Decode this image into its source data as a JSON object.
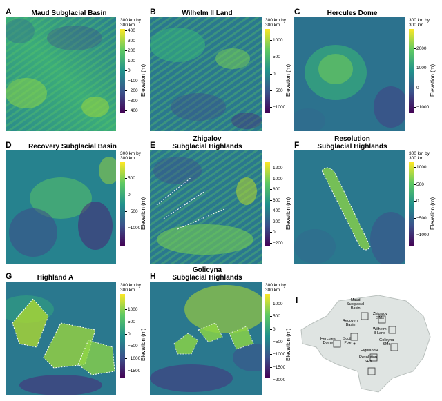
{
  "panels": [
    {
      "letter": "A",
      "title": "Maud Subglacial Basin",
      "scale_note": "300 km by\n300 km",
      "axis_label": "Elevation (m)",
      "ticks": [
        "400",
        "300",
        "200",
        "100",
        "0",
        "−100",
        "−200",
        "−300",
        "−400"
      ]
    },
    {
      "letter": "B",
      "title": "Wilhelm II Land",
      "scale_note": "300 km by\n300 km",
      "axis_label": "Elevation (m)",
      "ticks": [
        "1000",
        "500",
        "0",
        "−500",
        "−1000"
      ]
    },
    {
      "letter": "C",
      "title": "Hercules Dome",
      "scale_note": "300 km by\n300 km",
      "axis_label": "Elevation (m)",
      "ticks": [
        "2000",
        "1000",
        "0",
        "−1000"
      ]
    },
    {
      "letter": "D",
      "title": "Recovery Subglacial Basin",
      "scale_note": "300 km by\n300 km",
      "axis_label": "Elevation (m)",
      "ticks": [
        "500",
        "0",
        "−500",
        "−1000"
      ]
    },
    {
      "letter": "E",
      "title": "Zhigalov\nSubglacial Highlands",
      "scale_note": "",
      "axis_label": "Elevation (m)",
      "ticks": [
        "1200",
        "1000",
        "800",
        "600",
        "400",
        "200",
        "0",
        "−200"
      ]
    },
    {
      "letter": "F",
      "title": "Resolution\nSubglacial Highlands",
      "scale_note": "300 km by\n300 km",
      "axis_label": "Elevation (m)",
      "ticks": [
        "1000",
        "500",
        "0",
        "−500",
        "−1000"
      ]
    },
    {
      "letter": "G",
      "title": "Highland A",
      "scale_note": "300 km by\n300 km",
      "axis_label": "Elevation (m)",
      "ticks": [
        "1000",
        "500",
        "0",
        "−500",
        "−1000",
        "−1500"
      ]
    },
    {
      "letter": "H",
      "title": "Golicyna\nSubglacial Highlands",
      "scale_note": "300 km by\n300 km",
      "axis_label": "Elevation (m)",
      "ticks": [
        "1000",
        "500",
        "0",
        "−500",
        "−1000",
        "−1500",
        "−2000"
      ]
    }
  ],
  "inset": {
    "letter": "I",
    "labels": [
      "Maud\nSubglacial\nBasin",
      "Zhigalov\nSMs",
      "Recovery\nBasin",
      "Wilhelm\nII Land",
      "Hercules\nDome",
      "South\nPole",
      "Golicyna\nSMs",
      "Highland A",
      "Resolution\nSHs"
    ]
  },
  "colors": {
    "low": "#440154",
    "mid": "#21918c",
    "high": "#fde725"
  }
}
